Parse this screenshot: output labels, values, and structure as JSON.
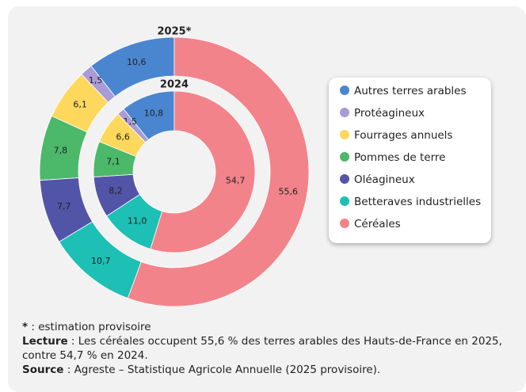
{
  "chart_data": {
    "type": "donut",
    "categories": [
      "Autres terres arables",
      "Protéagineux",
      "Fourrages annuels",
      "Pommes de terre",
      "Oléagineux",
      "Betteraves industrielles",
      "Céréales"
    ],
    "colors": [
      "#4a86d0",
      "#a89bd6",
      "#fdd85d",
      "#4bb86a",
      "#5254a8",
      "#1ebfb4",
      "#f2838a"
    ],
    "series": [
      {
        "name": "2025*",
        "values": [
          10.6,
          1.5,
          6.1,
          7.8,
          7.7,
          10.7,
          55.6
        ],
        "value_labels": [
          "10,6",
          "1,5",
          "6,1",
          "7,8",
          "7,7",
          "10,7",
          "55,6"
        ]
      },
      {
        "name": "2024",
        "values": [
          10.8,
          1.5,
          6.6,
          7.1,
          8.2,
          11.0,
          54.7
        ],
        "value_labels": [
          "10,8",
          "1,5",
          "6,6",
          "7,1",
          "8,2",
          "11,0",
          "54,7"
        ]
      }
    ],
    "notes": [
      {
        "bold": "*",
        "text": " : estimation provisoire"
      },
      {
        "bold": "Lecture",
        "text": " : Les céréales occupent 55,6 % des terres arables des Hauts-de-France en 2025, contre 54,7 % en 2024."
      },
      {
        "bold": "Source",
        "text": " : Agreste – Statistique Agricole Annuelle (2025 provisoire)."
      }
    ]
  }
}
